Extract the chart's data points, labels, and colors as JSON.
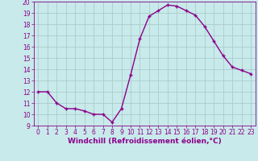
{
  "x": [
    0,
    1,
    2,
    3,
    4,
    5,
    6,
    7,
    8,
    9,
    10,
    11,
    12,
    13,
    14,
    15,
    16,
    17,
    18,
    19,
    20,
    21,
    22,
    23
  ],
  "y": [
    12,
    12,
    11,
    10.5,
    10.5,
    10.3,
    10.0,
    10.0,
    9.3,
    10.5,
    13.5,
    16.7,
    18.7,
    19.2,
    19.7,
    19.6,
    19.2,
    18.8,
    17.8,
    16.5,
    15.2,
    14.2,
    13.9,
    13.6
  ],
  "line_color": "#8B008B",
  "marker": "+",
  "marker_size": 3.5,
  "linewidth": 1.0,
  "background_color": "#c8eaea",
  "grid_color": "#aacccc",
  "xlabel": "Windchill (Refroidissement éolien,°C)",
  "xlabel_fontsize": 6.5,
  "xlabel_color": "#8B008B",
  "tick_color": "#8B008B",
  "tick_fontsize": 5.5,
  "ylim": [
    9,
    20
  ],
  "xlim": [
    -0.5,
    23.5
  ],
  "yticks": [
    9,
    10,
    11,
    12,
    13,
    14,
    15,
    16,
    17,
    18,
    19,
    20
  ],
  "xticks": [
    0,
    1,
    2,
    3,
    4,
    5,
    6,
    7,
    8,
    9,
    10,
    11,
    12,
    13,
    14,
    15,
    16,
    17,
    18,
    19,
    20,
    21,
    22,
    23
  ]
}
